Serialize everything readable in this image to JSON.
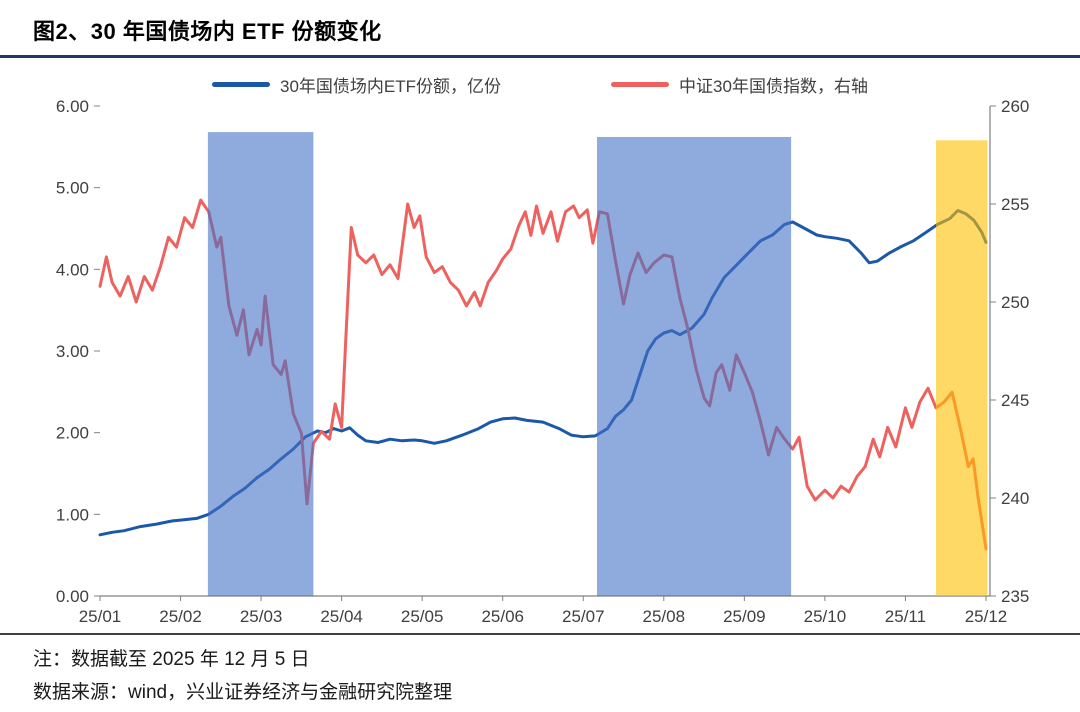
{
  "title": "图2、30 年国债场内 ETF 份额变化",
  "notes": {
    "note": "注：数据截至 2025 年 12 月 5 日",
    "source": "数据来源：wind，兴业证券经济与金融研究院整理"
  },
  "colors": {
    "title_rule": "#203864",
    "footer_rule": "#404040",
    "axis_text": "#404040",
    "axis_line": "#808080",
    "etf_line": "#1b59a8",
    "index_line": "#ed625e",
    "blue_band": "#4472C4",
    "yellow_band": "#FFC000"
  },
  "chart_data": {
    "type": "line",
    "title": "30 年国债场内 ETF 份额变化",
    "xlabel": "",
    "ylabel_left": "30年国债场内ETF份额（亿份）",
    "ylabel_right": "中证30年国债指数",
    "legend_position": "top-center",
    "grid": false,
    "xlim": [
      0,
      11.05
    ],
    "x_ticks": [
      0,
      1,
      2,
      3,
      4,
      5,
      6,
      7,
      8,
      9,
      10,
      11
    ],
    "x_tick_labels": [
      "25/01",
      "25/02",
      "25/03",
      "25/04",
      "25/05",
      "25/06",
      "25/07",
      "25/08",
      "25/09",
      "25/10",
      "25/11",
      "25/12"
    ],
    "ylim_left": [
      0,
      6
    ],
    "left_ticks": [
      0,
      1,
      2,
      3,
      4,
      5,
      6
    ],
    "ylim_right": [
      235,
      260
    ],
    "right_ticks": [
      235,
      240,
      245,
      250,
      255,
      260
    ],
    "series": [
      {
        "name": "30年国债场内ETF份额，亿份",
        "axis": "left",
        "color": "#1b59a8",
        "width": 3,
        "x": [
          0,
          0.15,
          0.3,
          0.5,
          0.7,
          0.9,
          1.0,
          1.2,
          1.35,
          1.5,
          1.65,
          1.8,
          1.95,
          2.1,
          2.25,
          2.4,
          2.55,
          2.7,
          2.8,
          2.9,
          3.0,
          3.1,
          3.2,
          3.3,
          3.45,
          3.6,
          3.75,
          3.9,
          4.0,
          4.15,
          4.3,
          4.5,
          4.7,
          4.85,
          5.0,
          5.15,
          5.3,
          5.5,
          5.7,
          5.85,
          6.0,
          6.15,
          6.3,
          6.4,
          6.5,
          6.6,
          6.7,
          6.8,
          6.9,
          7.0,
          7.1,
          7.2,
          7.35,
          7.5,
          7.6,
          7.75,
          7.9,
          8.0,
          8.1,
          8.2,
          8.35,
          8.5,
          8.6,
          8.75,
          8.9,
          9.0,
          9.15,
          9.3,
          9.45,
          9.55,
          9.65,
          9.8,
          9.95,
          10.1,
          10.25,
          10.4,
          10.55,
          10.65,
          10.75,
          10.85,
          10.95,
          11.0
        ],
        "values": [
          0.75,
          0.78,
          0.8,
          0.85,
          0.88,
          0.92,
          0.93,
          0.95,
          1.0,
          1.1,
          1.22,
          1.32,
          1.45,
          1.55,
          1.68,
          1.8,
          1.95,
          2.02,
          2.0,
          2.05,
          2.02,
          2.06,
          1.97,
          1.9,
          1.88,
          1.92,
          1.9,
          1.91,
          1.9,
          1.87,
          1.9,
          1.97,
          2.05,
          2.13,
          2.17,
          2.18,
          2.15,
          2.13,
          2.05,
          1.97,
          1.95,
          1.96,
          2.05,
          2.2,
          2.28,
          2.4,
          2.7,
          3.0,
          3.15,
          3.22,
          3.25,
          3.2,
          3.28,
          3.45,
          3.65,
          3.9,
          4.05,
          4.15,
          4.25,
          4.35,
          4.42,
          4.55,
          4.58,
          4.5,
          4.42,
          4.4,
          4.38,
          4.35,
          4.2,
          4.08,
          4.1,
          4.2,
          4.28,
          4.35,
          4.45,
          4.55,
          4.62,
          4.72,
          4.68,
          4.6,
          4.45,
          4.33
        ]
      },
      {
        "name": "中证30年国债指数，右轴",
        "axis": "right",
        "color": "#ed625e",
        "width": 3,
        "x": [
          0,
          0.08,
          0.15,
          0.25,
          0.35,
          0.45,
          0.55,
          0.65,
          0.75,
          0.85,
          0.95,
          1.05,
          1.15,
          1.25,
          1.35,
          1.45,
          1.5,
          1.6,
          1.7,
          1.78,
          1.85,
          1.95,
          2.0,
          2.05,
          2.15,
          2.25,
          2.3,
          2.4,
          2.5,
          2.57,
          2.65,
          2.75,
          2.85,
          2.92,
          3.0,
          3.05,
          3.12,
          3.2,
          3.3,
          3.4,
          3.5,
          3.6,
          3.7,
          3.82,
          3.9,
          3.97,
          4.05,
          4.15,
          4.25,
          4.35,
          4.45,
          4.55,
          4.65,
          4.72,
          4.82,
          4.92,
          5.0,
          5.1,
          5.2,
          5.28,
          5.35,
          5.42,
          5.5,
          5.6,
          5.68,
          5.78,
          5.88,
          5.95,
          6.05,
          6.12,
          6.2,
          6.3,
          6.4,
          6.5,
          6.58,
          6.68,
          6.78,
          6.88,
          7.0,
          7.1,
          7.2,
          7.3,
          7.4,
          7.5,
          7.57,
          7.65,
          7.72,
          7.82,
          7.9,
          8.0,
          8.1,
          8.2,
          8.3,
          8.4,
          8.5,
          8.6,
          8.68,
          8.78,
          8.88,
          9.0,
          9.1,
          9.2,
          9.3,
          9.4,
          9.5,
          9.6,
          9.68,
          9.78,
          9.88,
          10.0,
          10.08,
          10.18,
          10.28,
          10.38,
          10.48,
          10.58,
          10.68,
          10.78,
          10.84,
          10.9,
          11.0
        ],
        "values": [
          250.8,
          252.3,
          251.0,
          250.3,
          251.3,
          250.0,
          251.3,
          250.6,
          251.8,
          253.3,
          252.8,
          254.3,
          253.8,
          255.2,
          254.6,
          252.8,
          253.3,
          249.8,
          248.3,
          249.6,
          247.3,
          248.6,
          247.8,
          250.3,
          246.8,
          246.3,
          247.0,
          244.3,
          243.3,
          239.7,
          242.8,
          243.4,
          243.0,
          244.8,
          243.6,
          248.0,
          253.8,
          252.4,
          252.0,
          252.4,
          251.4,
          251.9,
          251.2,
          255.0,
          253.8,
          254.4,
          252.3,
          251.5,
          251.8,
          251.0,
          250.6,
          249.8,
          250.5,
          249.8,
          251.0,
          251.6,
          252.2,
          252.7,
          253.9,
          254.6,
          253.4,
          254.9,
          253.5,
          254.6,
          253.1,
          254.6,
          254.9,
          254.3,
          254.7,
          253.0,
          254.6,
          254.5,
          252.1,
          249.9,
          251.4,
          252.5,
          251.5,
          252.0,
          252.4,
          252.3,
          250.2,
          248.6,
          246.6,
          245.1,
          244.7,
          246.4,
          246.8,
          245.5,
          247.3,
          246.4,
          245.4,
          243.9,
          242.2,
          243.6,
          243.0,
          242.5,
          243.1,
          240.6,
          239.9,
          240.4,
          240.0,
          240.6,
          240.3,
          241.1,
          241.6,
          243.0,
          242.1,
          243.6,
          242.6,
          244.6,
          243.6,
          244.9,
          245.6,
          244.6,
          244.9,
          245.4,
          243.6,
          241.6,
          242.0,
          240.1,
          237.4
        ]
      }
    ],
    "highlight_bands": [
      {
        "x0": 1.34,
        "x1": 2.65,
        "band_top": 5.68,
        "color": "#4472C4",
        "opacity": 0.6
      },
      {
        "x0": 6.17,
        "x1": 8.58,
        "band_top": 5.62,
        "color": "#4472C4",
        "opacity": 0.6
      },
      {
        "x0": 10.38,
        "x1": 11.02,
        "band_top": 5.58,
        "color": "#FFC000",
        "opacity": 0.6
      }
    ]
  }
}
